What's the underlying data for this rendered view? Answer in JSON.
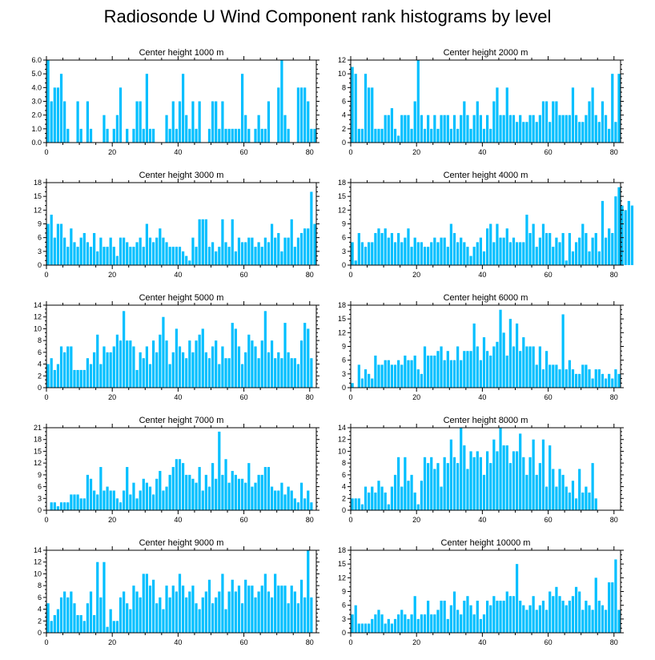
{
  "title": "Radiosonde U Wind Component rank histograms by level",
  "bar_color": "#00bfff",
  "chart_data": [
    {
      "type": "bar",
      "title": "Center height 1000 m",
      "xlim": [
        0,
        82
      ],
      "xticks": [
        0,
        20,
        40,
        60,
        80
      ],
      "ylim": [
        0,
        6
      ],
      "yticks": [
        "0.0",
        "1.0",
        "2.0",
        "3.0",
        "4.0",
        "5.0",
        "6.0"
      ],
      "values": [
        6,
        3,
        4,
        4,
        5,
        3,
        1,
        0,
        0,
        3,
        1,
        0,
        3,
        1,
        0,
        0,
        0,
        2,
        1,
        0,
        1,
        2,
        4,
        0,
        1,
        0,
        1,
        3,
        3,
        1,
        5,
        1,
        1,
        0,
        0,
        0,
        2,
        1,
        3,
        1,
        3,
        5,
        2,
        1,
        3,
        1,
        3,
        0,
        0,
        1,
        3,
        3,
        1,
        3,
        1,
        1,
        1,
        1,
        1,
        5,
        2,
        1,
        0,
        1,
        2,
        1,
        1,
        3,
        0,
        0,
        4,
        6,
        2,
        1,
        0,
        0,
        4,
        4,
        4,
        3,
        1,
        1
      ]
    },
    {
      "type": "bar",
      "title": "Center height 2000 m",
      "xlim": [
        0,
        82
      ],
      "xticks": [
        0,
        20,
        40,
        60,
        80
      ],
      "ylim": [
        0,
        12
      ],
      "yticks": [
        "0",
        "2",
        "4",
        "6",
        "8",
        "10",
        "12"
      ],
      "values": [
        11,
        10,
        2,
        2,
        10,
        8,
        8,
        2,
        2,
        2,
        4,
        4,
        5,
        2,
        1,
        4,
        4,
        4,
        2,
        6,
        12,
        4,
        2,
        4,
        2,
        4,
        2,
        4,
        4,
        4,
        2,
        4,
        2,
        4,
        6,
        4,
        2,
        4,
        6,
        4,
        2,
        4,
        2,
        6,
        8,
        4,
        4,
        8,
        4,
        4,
        3,
        4,
        3,
        3,
        4,
        4,
        3,
        4,
        6,
        6,
        3,
        6,
        6,
        4,
        4,
        4,
        4,
        8,
        4,
        3,
        3,
        4,
        6,
        8,
        4,
        3,
        6,
        4,
        2,
        10,
        3,
        10
      ]
    },
    {
      "type": "bar",
      "title": "Center height 3000 m",
      "xlim": [
        0,
        82
      ],
      "xticks": [
        0,
        20,
        40,
        60,
        80
      ],
      "ylim": [
        0,
        18
      ],
      "yticks": [
        "0",
        "3",
        "6",
        "9",
        "12",
        "15",
        "18"
      ],
      "values": [
        9,
        11,
        6,
        9,
        9,
        6,
        4,
        8,
        5,
        4,
        6,
        7,
        5,
        4,
        7,
        3,
        6,
        4,
        4,
        6,
        4,
        2,
        6,
        6,
        5,
        4,
        4,
        5,
        6,
        4,
        9,
        6,
        5,
        6,
        8,
        6,
        5,
        4,
        4,
        4,
        4,
        3,
        2,
        1,
        6,
        4,
        10,
        10,
        10,
        4,
        5,
        3,
        4,
        10,
        5,
        4,
        10,
        3,
        6,
        5,
        5,
        6,
        6,
        4,
        5,
        4,
        6,
        5,
        9,
        6,
        7,
        3,
        6,
        6,
        10,
        4,
        6,
        7,
        8,
        8,
        16,
        9
      ]
    },
    {
      "type": "bar",
      "title": "Center height 4000 m",
      "xlim": [
        0,
        82
      ],
      "xticks": [
        0,
        20,
        40,
        60,
        80
      ],
      "ylim": [
        0,
        18
      ],
      "yticks": [
        "0",
        "3",
        "6",
        "9",
        "12",
        "15",
        "18"
      ],
      "values": [
        5,
        1,
        7,
        5,
        4,
        5,
        5,
        7,
        8,
        7,
        8,
        6,
        7,
        5,
        7,
        5,
        6,
        8,
        4,
        6,
        5,
        5,
        4,
        4,
        5,
        6,
        5,
        6,
        6,
        4,
        9,
        7,
        5,
        6,
        5,
        4,
        2,
        4,
        5,
        6,
        3,
        8,
        9,
        5,
        9,
        6,
        6,
        8,
        5,
        6,
        5,
        5,
        5,
        11,
        7,
        9,
        4,
        6,
        9,
        7,
        7,
        4,
        6,
        5,
        7,
        1,
        7,
        3,
        5,
        6,
        9,
        7,
        3,
        6,
        7,
        3,
        14,
        6,
        8,
        7,
        15,
        17,
        13,
        12,
        14,
        13
      ]
    },
    {
      "type": "bar",
      "title": "Center height 5000 m",
      "xlim": [
        0,
        82
      ],
      "xticks": [
        0,
        20,
        40,
        60,
        80
      ],
      "ylim": [
        0,
        14
      ],
      "yticks": [
        "0",
        "2",
        "4",
        "6",
        "8",
        "10",
        "12",
        "14"
      ],
      "values": [
        4,
        5,
        3,
        4,
        7,
        6,
        7,
        7,
        3,
        3,
        3,
        3,
        5,
        4,
        6,
        9,
        4,
        7,
        6,
        6,
        7,
        9,
        8,
        13,
        8,
        8,
        7,
        3,
        6,
        5,
        7,
        4,
        8,
        6,
        9,
        12,
        8,
        4,
        6,
        10,
        7,
        6,
        5,
        8,
        6,
        8,
        9,
        10,
        6,
        5,
        7,
        8,
        4,
        7,
        5,
        5,
        11,
        10,
        7,
        4,
        6,
        9,
        8,
        7,
        5,
        8,
        13,
        6,
        8,
        5,
        6,
        5,
        11,
        6,
        5,
        5,
        4,
        8,
        11,
        10,
        5
      ]
    },
    {
      "type": "bar",
      "title": "Center height 6000 m",
      "xlim": [
        0,
        82
      ],
      "xticks": [
        0,
        20,
        40,
        60,
        80
      ],
      "ylim": [
        0,
        18
      ],
      "yticks": [
        "0",
        "3",
        "6",
        "9",
        "12",
        "15",
        "18"
      ],
      "values": [
        1,
        0,
        5,
        2,
        4,
        3,
        2,
        7,
        5,
        5,
        6,
        6,
        5,
        5,
        6,
        5,
        7,
        6,
        6,
        7,
        4,
        3,
        9,
        7,
        7,
        7,
        8,
        9,
        6,
        8,
        6,
        6,
        9,
        6,
        8,
        8,
        8,
        14,
        9,
        6,
        11,
        8,
        7,
        9,
        10,
        17,
        12,
        7,
        15,
        9,
        14,
        8,
        11,
        9,
        9,
        9,
        5,
        9,
        4,
        8,
        5,
        5,
        5,
        4,
        16,
        4,
        6,
        4,
        3,
        3,
        5,
        5,
        4,
        2,
        4,
        4,
        3,
        2,
        3,
        2,
        4,
        3
      ]
    },
    {
      "type": "bar",
      "title": "Center height 7000 m",
      "xlim": [
        0,
        82
      ],
      "xticks": [
        0,
        20,
        40,
        60,
        80
      ],
      "ylim": [
        0,
        21
      ],
      "yticks": [
        "0",
        "3",
        "6",
        "9",
        "12",
        "15",
        "18",
        "21"
      ],
      "values": [
        0,
        2,
        2,
        1,
        2,
        2,
        2,
        4,
        4,
        4,
        3,
        3,
        9,
        8,
        5,
        4,
        11,
        5,
        6,
        5,
        5,
        3,
        2,
        5,
        11,
        4,
        7,
        3,
        5,
        8,
        7,
        6,
        4,
        8,
        10,
        5,
        6,
        9,
        11,
        13,
        13,
        12,
        9,
        9,
        8,
        7,
        11,
        5,
        9,
        6,
        12,
        8,
        20,
        9,
        13,
        7,
        10,
        9,
        8,
        8,
        7,
        12,
        6,
        7,
        9,
        9,
        11,
        11,
        6,
        5,
        5,
        7,
        4,
        6,
        5,
        3,
        2,
        7,
        3,
        5,
        2
      ]
    },
    {
      "type": "bar",
      "title": "Center height 8000 m",
      "xlim": [
        0,
        82
      ],
      "xticks": [
        0,
        20,
        40,
        60,
        80
      ],
      "ylim": [
        0,
        14
      ],
      "yticks": [
        "0",
        "2",
        "4",
        "6",
        "8",
        "10",
        "12",
        "14"
      ],
      "values": [
        2,
        2,
        2,
        1,
        4,
        3,
        4,
        3,
        5,
        4,
        3,
        1,
        4,
        6,
        9,
        4,
        9,
        5,
        6,
        3,
        1,
        5,
        9,
        8,
        9,
        7,
        8,
        4,
        9,
        8,
        12,
        9,
        8,
        14,
        11,
        7,
        10,
        9,
        10,
        9,
        6,
        10,
        8,
        12,
        10,
        14,
        11,
        11,
        8,
        10,
        10,
        13,
        9,
        6,
        9,
        12,
        6,
        8,
        12,
        4,
        11,
        7,
        4,
        7,
        6,
        4,
        3,
        5,
        2,
        7,
        3,
        4,
        3,
        8,
        2
      ]
    },
    {
      "type": "bar",
      "title": "Center height 9000 m",
      "xlim": [
        0,
        82
      ],
      "xticks": [
        0,
        20,
        40,
        60,
        80
      ],
      "ylim": [
        0,
        14
      ],
      "yticks": [
        "0",
        "2",
        "4",
        "6",
        "8",
        "10",
        "12",
        "14"
      ],
      "values": [
        5,
        2,
        3,
        4,
        6,
        7,
        6,
        7,
        5,
        3,
        3,
        2,
        5,
        7,
        3,
        12,
        6,
        12,
        1,
        4,
        2,
        2,
        6,
        7,
        5,
        4,
        8,
        7,
        6,
        10,
        10,
        8,
        9,
        5,
        6,
        4,
        8,
        6,
        8,
        7,
        10,
        8,
        6,
        7,
        8,
        5,
        4,
        6,
        7,
        9,
        5,
        6,
        7,
        10,
        4,
        7,
        9,
        7,
        8,
        5,
        9,
        8,
        8,
        6,
        7,
        8,
        10,
        7,
        6,
        10,
        8,
        8,
        8,
        5,
        8,
        7,
        5,
        9,
        6,
        14,
        6
      ]
    },
    {
      "type": "bar",
      "title": "Center height 10000 m",
      "xlim": [
        0,
        82
      ],
      "xticks": [
        0,
        20,
        40,
        60,
        80
      ],
      "ylim": [
        0,
        18
      ],
      "yticks": [
        "0",
        "3",
        "6",
        "9",
        "12",
        "15",
        "18"
      ],
      "values": [
        4,
        6,
        2,
        2,
        2,
        2,
        3,
        4,
        5,
        4,
        2,
        3,
        2,
        3,
        4,
        5,
        4,
        3,
        4,
        8,
        3,
        4,
        4,
        7,
        4,
        4,
        5,
        7,
        7,
        3,
        6,
        9,
        5,
        4,
        7,
        8,
        6,
        4,
        7,
        3,
        4,
        7,
        6,
        8,
        7,
        7,
        7,
        9,
        8,
        8,
        15,
        7,
        6,
        5,
        6,
        8,
        5,
        6,
        7,
        5,
        9,
        8,
        10,
        8,
        7,
        6,
        7,
        8,
        10,
        9,
        5,
        7,
        6,
        5,
        12,
        7,
        6,
        5,
        11,
        11,
        16,
        5
      ]
    }
  ]
}
